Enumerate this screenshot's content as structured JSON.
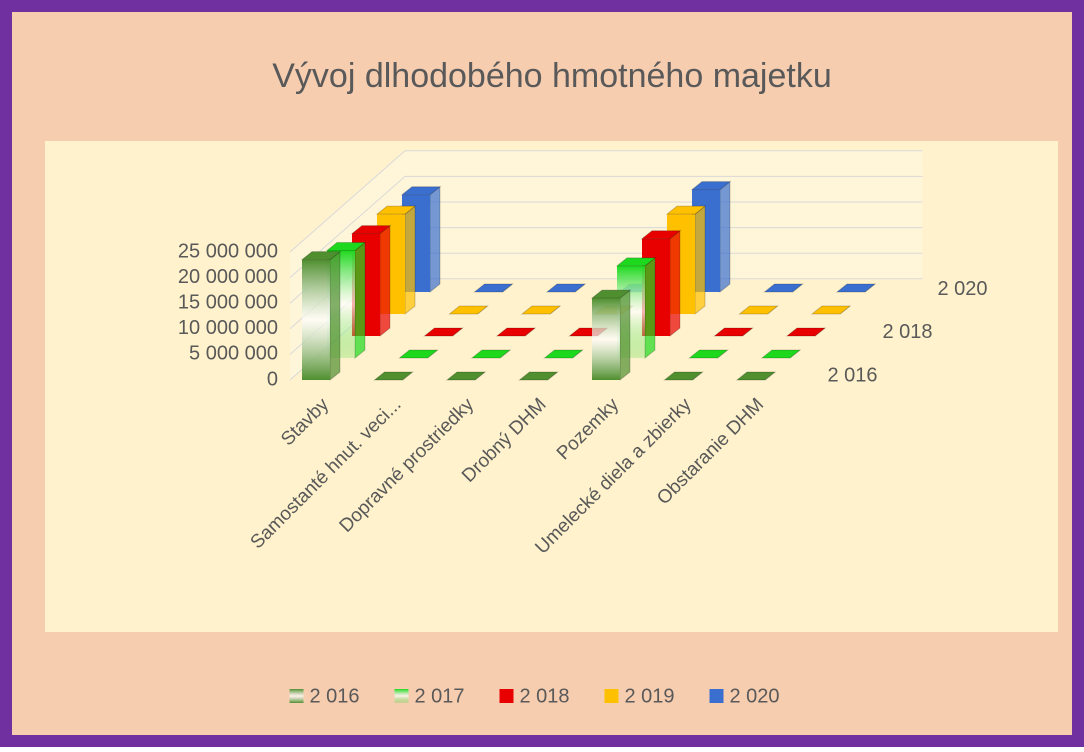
{
  "chart_data": {
    "type": "bar3d",
    "title": "Vývoj  dlhodobého hmotného majetku",
    "categories": [
      "Stavby",
      "Samostanté hnut. veci...",
      "Dopravné prostriedky",
      "Drobný DHM",
      "Pozemky",
      "Umelecké diela a zbierky",
      "Obstaranie DHM"
    ],
    "series": [
      {
        "name": "2 016",
        "color": "#4f8f2f",
        "values": [
          23500000,
          0,
          0,
          0,
          16000000,
          0,
          0
        ]
      },
      {
        "name": "2 017",
        "color": "#1ed81e",
        "values": [
          21000000,
          0,
          0,
          0,
          18000000,
          0,
          0
        ]
      },
      {
        "name": "2 018",
        "color": "#e80000",
        "values": [
          20000000,
          0,
          0,
          0,
          19000000,
          0,
          0
        ]
      },
      {
        "name": "2 019",
        "color": "#ffc000",
        "values": [
          19500000,
          0,
          0,
          0,
          19500000,
          0,
          0
        ]
      },
      {
        "name": "2 020",
        "color": "#3a6fd0",
        "values": [
          19000000,
          0,
          0,
          0,
          20000000,
          0,
          0
        ]
      }
    ],
    "ylim": [
      0,
      25000000
    ],
    "yticks": [
      0,
      {
        "value": 5000000,
        "label": "5 000 000"
      },
      {
        "value": 10000000,
        "label": "10 000 000"
      },
      {
        "value": 15000000,
        "label": "15 000 000"
      },
      {
        "value": 20000000,
        "label": "20 000 000"
      },
      {
        "value": 25000000,
        "label": "25 000 000"
      }
    ],
    "grid": true,
    "legend": "bottom"
  }
}
